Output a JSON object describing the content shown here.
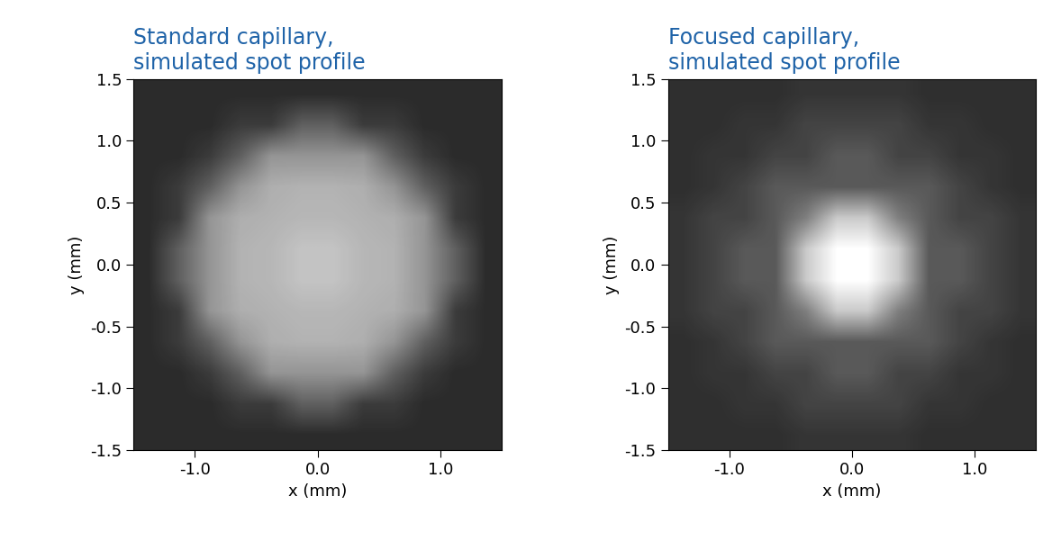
{
  "chart_data": [
    {
      "type": "heatmap",
      "title": "Standard capillary,\nsimulated spot profile",
      "x_label": "x (mm)",
      "y_label": "y (mm)",
      "xlim": [
        -1.5,
        1.5
      ],
      "ylim": [
        -1.5,
        1.5
      ],
      "xticks": [
        -1.0,
        0.0,
        1.0
      ],
      "yticks": [
        -1.5,
        -1.0,
        -0.5,
        0.0,
        0.5,
        1.0,
        1.5
      ],
      "color_range": [
        0,
        1
      ],
      "cells": [
        [
          0,
          0,
          0,
          0,
          0,
          0,
          0,
          0,
          0,
          0,
          0,
          0
        ],
        [
          0,
          0,
          0,
          0.08,
          0.08,
          0.25,
          0.25,
          0.08,
          0.08,
          0,
          0,
          0
        ],
        [
          0,
          0,
          0.08,
          0.25,
          0.5,
          0.5,
          0.5,
          0.5,
          0.25,
          0.08,
          0,
          0
        ],
        [
          0,
          0.08,
          0.25,
          0.5,
          0.62,
          0.64,
          0.64,
          0.62,
          0.5,
          0.25,
          0.08,
          0
        ],
        [
          0,
          0.08,
          0.5,
          0.62,
          0.64,
          0.66,
          0.66,
          0.64,
          0.62,
          0.5,
          0.08,
          0
        ],
        [
          0,
          0.25,
          0.5,
          0.64,
          0.66,
          0.72,
          0.72,
          0.66,
          0.64,
          0.5,
          0.25,
          0
        ],
        [
          0,
          0.25,
          0.5,
          0.64,
          0.66,
          0.72,
          0.72,
          0.66,
          0.64,
          0.5,
          0.25,
          0
        ],
        [
          0,
          0.08,
          0.5,
          0.62,
          0.64,
          0.66,
          0.66,
          0.64,
          0.62,
          0.5,
          0.08,
          0
        ],
        [
          0,
          0.08,
          0.25,
          0.5,
          0.62,
          0.64,
          0.64,
          0.62,
          0.5,
          0.25,
          0.08,
          0
        ],
        [
          0,
          0,
          0.08,
          0.25,
          0.5,
          0.5,
          0.5,
          0.5,
          0.25,
          0.08,
          0,
          0
        ],
        [
          0,
          0,
          0,
          0.08,
          0.08,
          0.25,
          0.25,
          0.08,
          0.08,
          0,
          0,
          0
        ],
        [
          0,
          0,
          0,
          0,
          0,
          0,
          0,
          0,
          0,
          0,
          0,
          0
        ]
      ]
    },
    {
      "type": "heatmap",
      "title": "Focused capillary,\nsimulated spot profile",
      "x_label": "x (mm)",
      "y_label": "y (mm)",
      "xlim": [
        -1.5,
        1.5
      ],
      "ylim": [
        -1.5,
        1.5
      ],
      "xticks": [
        -1.0,
        0.0,
        1.0
      ],
      "yticks": [
        -1.5,
        -1.0,
        -0.5,
        0.0,
        0.5,
        1.0,
        1.5
      ],
      "color_range": [
        0,
        1
      ],
      "cells": [
        [
          0.02,
          0.02,
          0.02,
          0.02,
          0.05,
          0.05,
          0.05,
          0.05,
          0.02,
          0.02,
          0.02,
          0.02
        ],
        [
          0.02,
          0.02,
          0.05,
          0.05,
          0.12,
          0.12,
          0.12,
          0.12,
          0.05,
          0.05,
          0.02,
          0.02
        ],
        [
          0.02,
          0.05,
          0.05,
          0.12,
          0.12,
          0.22,
          0.22,
          0.12,
          0.12,
          0.05,
          0.05,
          0.02
        ],
        [
          0.02,
          0.05,
          0.12,
          0.22,
          0.22,
          0.22,
          0.22,
          0.22,
          0.22,
          0.12,
          0.05,
          0.02
        ],
        [
          0.05,
          0.12,
          0.12,
          0.22,
          0.4,
          0.75,
          0.75,
          0.4,
          0.22,
          0.12,
          0.12,
          0.05
        ],
        [
          0.05,
          0.12,
          0.22,
          0.22,
          0.75,
          1.0,
          1.0,
          0.75,
          0.22,
          0.22,
          0.12,
          0.05
        ],
        [
          0.05,
          0.12,
          0.22,
          0.22,
          0.75,
          1.0,
          1.0,
          0.75,
          0.22,
          0.22,
          0.12,
          0.05
        ],
        [
          0.05,
          0.12,
          0.12,
          0.22,
          0.4,
          0.75,
          0.75,
          0.4,
          0.22,
          0.12,
          0.12,
          0.05
        ],
        [
          0.02,
          0.05,
          0.12,
          0.22,
          0.22,
          0.22,
          0.22,
          0.22,
          0.22,
          0.12,
          0.05,
          0.02
        ],
        [
          0.02,
          0.05,
          0.05,
          0.12,
          0.12,
          0.22,
          0.22,
          0.12,
          0.12,
          0.05,
          0.05,
          0.02
        ],
        [
          0.02,
          0.02,
          0.05,
          0.05,
          0.12,
          0.12,
          0.12,
          0.12,
          0.05,
          0.05,
          0.02,
          0.02
        ],
        [
          0.02,
          0.02,
          0.02,
          0.02,
          0.05,
          0.05,
          0.05,
          0.05,
          0.02,
          0.02,
          0.02,
          0.02
        ]
      ]
    }
  ]
}
